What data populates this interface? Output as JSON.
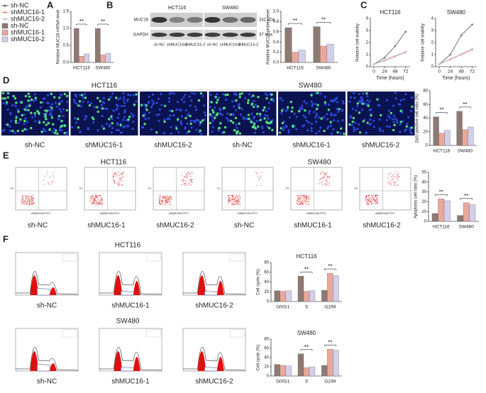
{
  "panel_letters": [
    "A",
    "B",
    "C",
    "D",
    "E",
    "F"
  ],
  "legend": [
    {
      "name": "sh-NC",
      "color": "#707070",
      "marker": "line"
    },
    {
      "name": "shMUC16-1",
      "color": "#e8998a",
      "marker": "line"
    },
    {
      "name": "shMUC16-2",
      "color": "#c6c0e2",
      "marker": "line"
    },
    {
      "name": "sh-NC",
      "color": "#8c7a73",
      "marker": "box"
    },
    {
      "name": "shMUC16-1",
      "color": "#e9a89b",
      "marker": "box"
    },
    {
      "name": "shMUC16-2",
      "color": "#d3cfe9",
      "marker": "box"
    }
  ],
  "blot": {
    "cell_lines": [
      "HCT116",
      "SW480"
    ],
    "proteins": [
      "MUC16",
      "GAPDH"
    ],
    "sizes": [
      "242 kDa",
      "37 kDa"
    ],
    "lanes": [
      "sh-NC",
      "shMUC16-1",
      "shMUC16-2",
      "sh-NC",
      "shMUC16-1",
      "shMUC16-2"
    ]
  },
  "edu": {
    "cell_lines": [
      "HCT116",
      "SW480"
    ],
    "samples": [
      "sh-NC",
      "shMUC16-1",
      "shMUC16-2",
      "sh-NC",
      "shMUC16-1",
      "shMUC16-2"
    ]
  },
  "flow": {
    "cell_lines": [
      "HCT116",
      "SW480"
    ],
    "samples": [
      "sh-NC",
      "shMUC16-1",
      "shMUC16-2",
      "sh-NC",
      "shMUC16-1",
      "shMUC16-2"
    ],
    "x_axis": "ANNEXIN-FITC",
    "y_axis": "PI"
  },
  "cycle": {
    "rows": [
      {
        "cell_line": "HCT116",
        "samples": [
          "sh-NC",
          "shMUC16-1",
          "shMUC16-2"
        ]
      },
      {
        "cell_line": "SW480",
        "samples": [
          "sh-NC",
          "shMUC16-1",
          "shMUC16-2"
        ]
      }
    ]
  },
  "chart_data": [
    {
      "type": "bar",
      "ylabel": "Relative MUC16 mRNA level",
      "categories": [
        "HCT116",
        "SW480"
      ],
      "series": [
        {
          "color": "#8c7a73",
          "values": [
            1.0,
            1.0
          ]
        },
        {
          "color": "#e9a89b",
          "values": [
            0.18,
            0.22
          ]
        },
        {
          "color": "#d3cfe9",
          "values": [
            0.25,
            0.27
          ]
        }
      ],
      "ylim": [
        0,
        1.5
      ],
      "yticks": [
        {
          "value": 0,
          "label": "0.0"
        },
        {
          "value": 0.5,
          "label": "0.5"
        },
        {
          "value": 1,
          "label": "1.0"
        },
        {
          "value": 1.5,
          "label": "1.5"
        }
      ],
      "annotations": [
        "**",
        "**"
      ]
    },
    {
      "type": "bar",
      "ylabel": "Relative MUC16 protein level",
      "categories": [
        "HCT116",
        "SW480"
      ],
      "series": [
        {
          "color": "#8c7a73",
          "values": [
            0.68,
            0.7
          ]
        },
        {
          "color": "#e9a89b",
          "values": [
            0.2,
            0.32
          ]
        },
        {
          "color": "#d3cfe9",
          "values": [
            0.24,
            0.36
          ]
        }
      ],
      "ylim": [
        0,
        1
      ],
      "yticks": [
        {
          "value": 0,
          "label": "0.0"
        },
        {
          "value": 0.2,
          "label": "0.2"
        },
        {
          "value": 0.4,
          "label": "0.4"
        },
        {
          "value": 0.6,
          "label": "0.6"
        },
        {
          "value": 0.8,
          "label": "0.8"
        },
        {
          "value": 1,
          "label": "1.0"
        }
      ],
      "annotations": [
        "**",
        "**"
      ]
    },
    {
      "type": "line",
      "title": "HCT116",
      "ylabel": "Relative cell viability",
      "xlabel": "Time (hours)",
      "x": [
        0,
        24,
        48,
        72
      ],
      "series": [
        {
          "color": "#707070",
          "values": [
            0.2,
            0.75,
            1.7,
            2.9
          ]
        },
        {
          "color": "#e8998a",
          "values": [
            0.2,
            0.5,
            0.85,
            1.2
          ]
        },
        {
          "color": "#c6c0e2",
          "values": [
            0.2,
            0.55,
            0.9,
            1.25
          ]
        }
      ],
      "xlim": [
        -8,
        82
      ],
      "xticks": [
        0,
        24,
        48,
        72
      ],
      "ylim": [
        0,
        4
      ],
      "yticks": [
        0,
        1,
        2,
        3,
        4
      ]
    },
    {
      "type": "line",
      "title": "SW480",
      "ylabel": "Relative cell viability",
      "xlabel": "Time (hours)",
      "x": [
        0,
        24,
        48,
        72
      ],
      "series": [
        {
          "color": "#707070",
          "values": [
            0.2,
            1.0,
            2.6,
            3.5
          ]
        },
        {
          "color": "#e8998a",
          "values": [
            0.2,
            0.6,
            1.0,
            1.4
          ]
        },
        {
          "color": "#c6c0e2",
          "values": [
            0.2,
            0.65,
            1.05,
            1.5
          ]
        }
      ],
      "xlim": [
        -8,
        82
      ],
      "xticks": [
        0,
        24,
        48,
        72
      ],
      "ylim": [
        0,
        4
      ],
      "yticks": [
        0,
        1,
        2,
        3,
        4
      ]
    },
    {
      "type": "bar",
      "ylabel": "EdU positive cell ratio (%)",
      "categories": [
        "HCT116",
        "SW480"
      ],
      "series": [
        {
          "color": "#8c7a73",
          "values": [
            42,
            50
          ]
        },
        {
          "color": "#e9a89b",
          "values": [
            18,
            23
          ]
        },
        {
          "color": "#d3cfe9",
          "values": [
            22,
            27
          ]
        }
      ],
      "ylim": [
        0,
        80
      ],
      "yticks": [
        0,
        20,
        40,
        60,
        80
      ],
      "annotations": [
        "**",
        "**"
      ]
    },
    {
      "type": "bar",
      "ylabel": "Apoptosis cell ratio (%)",
      "categories": [
        "HCT116",
        "SW480"
      ],
      "series": [
        {
          "color": "#8c7a73",
          "values": [
            8,
            6
          ]
        },
        {
          "color": "#e9a89b",
          "values": [
            23,
            19
          ]
        },
        {
          "color": "#d3cfe9",
          "values": [
            21,
            17
          ]
        }
      ],
      "ylim": [
        0,
        50
      ],
      "yticks": [
        0,
        10,
        20,
        30,
        40,
        50
      ],
      "annotations": [
        "**",
        "**"
      ]
    },
    {
      "type": "bar",
      "title": "HCT116",
      "ylabel": "Cell cycle (%)",
      "categories": [
        "G0/G1",
        "S",
        "G2/M"
      ],
      "series": [
        {
          "color": "#8c7a73",
          "values": [
            22,
            52,
            23
          ]
        },
        {
          "color": "#e9a89b",
          "values": [
            21,
            21,
            58
          ]
        },
        {
          "color": "#d3cfe9",
          "values": [
            22,
            22,
            53
          ]
        }
      ],
      "ylim": [
        0,
        80
      ],
      "yticks": [
        0,
        20,
        40,
        60,
        80
      ],
      "annotations": [
        "**",
        "**"
      ]
    },
    {
      "type": "bar",
      "title": "SW480",
      "ylabel": "Cell cycle (%)",
      "categories": [
        "G0/G1",
        "S",
        "G2/M"
      ],
      "series": [
        {
          "color": "#8c7a73",
          "values": [
            25,
            48,
            23
          ]
        },
        {
          "color": "#e9a89b",
          "values": [
            23,
            18,
            58
          ]
        },
        {
          "color": "#d3cfe9",
          "values": [
            22,
            20,
            56
          ]
        }
      ],
      "ylim": [
        0,
        80
      ],
      "yticks": [
        0,
        20,
        40,
        60,
        80
      ],
      "annotations": [
        "**",
        "**"
      ]
    }
  ]
}
